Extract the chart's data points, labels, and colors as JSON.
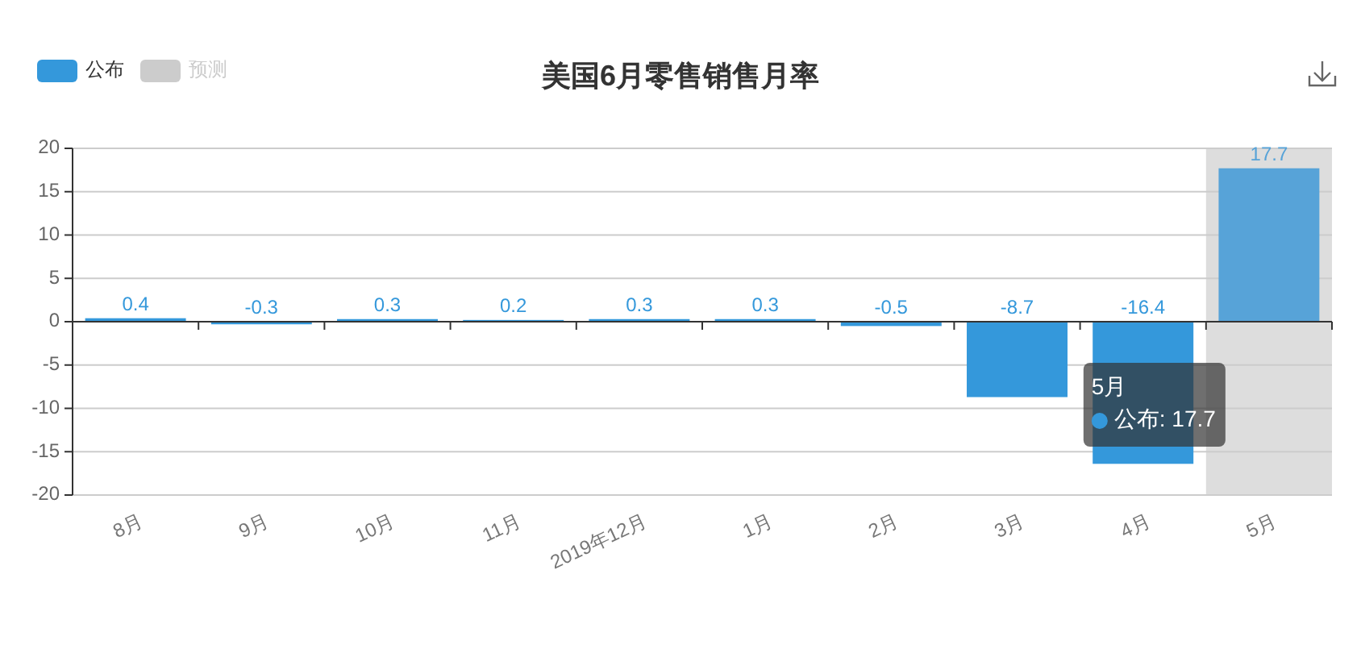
{
  "chart_data": {
    "type": "bar",
    "title": "美国6月零售销售月率",
    "categories": [
      "8月",
      "9月",
      "10月",
      "11月",
      "2019年12月",
      "1月",
      "2月",
      "3月",
      "4月",
      "5月"
    ],
    "series": [
      {
        "name": "公布",
        "color": "#3498db",
        "colors": [
          "#3498db",
          "#3498db",
          "#3498db",
          "#3498db",
          "#3498db",
          "#3498db",
          "#3498db",
          "#3498db",
          "#3498db",
          "#57a3d8"
        ],
        "values": [
          0.4,
          -0.3,
          0.3,
          0.2,
          0.3,
          0.3,
          -0.5,
          -8.7,
          -16.4,
          17.7
        ]
      },
      {
        "name": "预测",
        "color": "#cccccc",
        "values": [
          null,
          null,
          null,
          null,
          null,
          null,
          null,
          null,
          null,
          null
        ]
      }
    ],
    "ylim": [
      -20,
      20
    ],
    "yticks": [
      -20,
      -15,
      -10,
      -5,
      0,
      5,
      10,
      15,
      20
    ],
    "grid": "y",
    "legend": "top left",
    "data_labels": true,
    "bands": [
      {
        "axis": "x",
        "from": "5月",
        "to": "5月",
        "color": "#dddddd"
      }
    ],
    "annotations": [
      "5月",
      "公布: 17.7"
    ]
  }
}
